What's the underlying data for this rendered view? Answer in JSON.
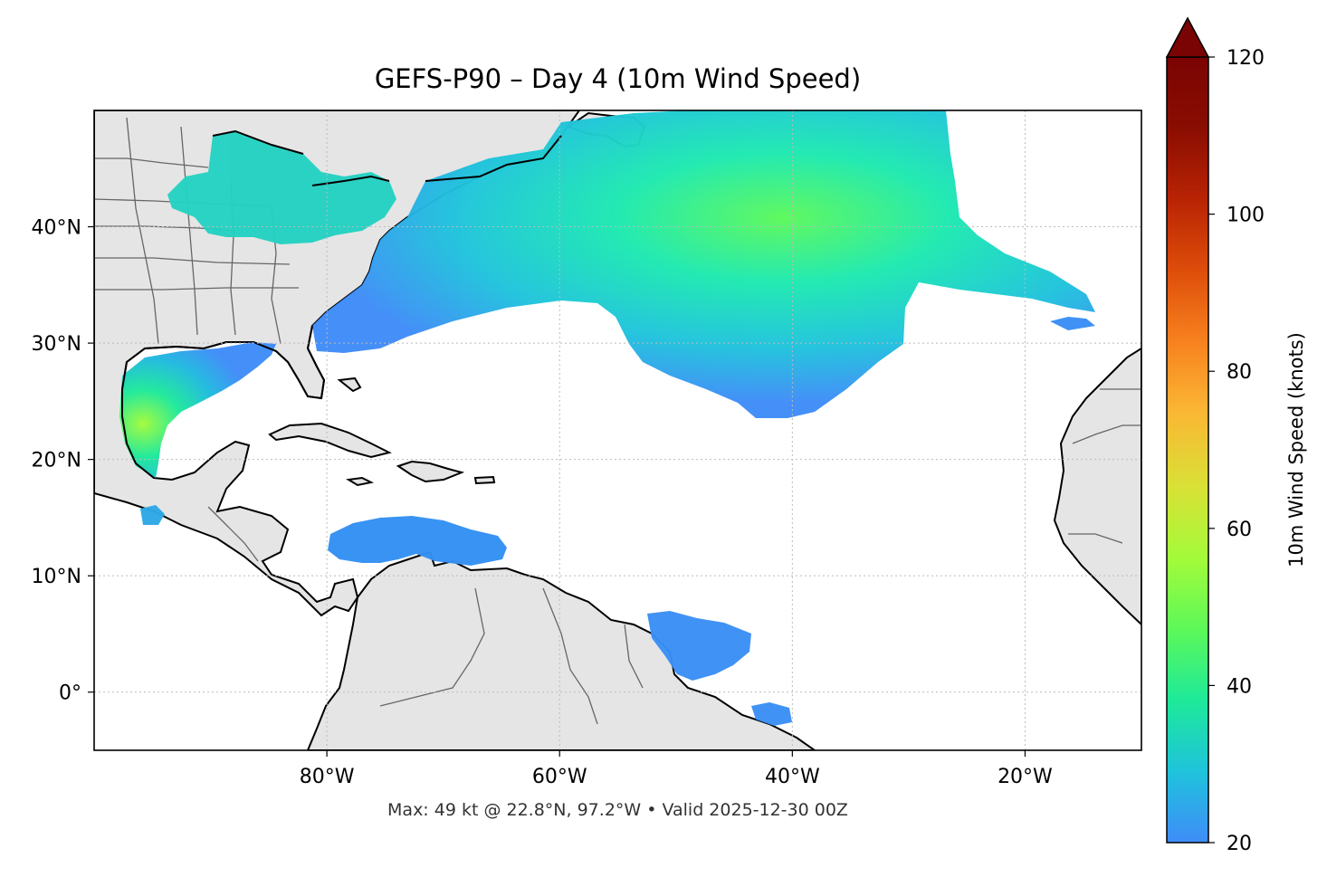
{
  "title": "GEFS-P90 – Day 4 (10m Wind Speed)",
  "caption": "Max: 49 kt @ 22.8°N, 97.2°W • Valid 2025-12-30 00Z",
  "map": {
    "lon_range": [
      -100,
      -10
    ],
    "lat_range": [
      -5,
      50
    ],
    "lon_ticks": [
      {
        "value": -80,
        "label": "80°W"
      },
      {
        "value": -60,
        "label": "60°W"
      },
      {
        "value": -40,
        "label": "40°W"
      },
      {
        "value": -20,
        "label": "20°W"
      }
    ],
    "lat_ticks": [
      {
        "value": 40,
        "label": "40°N"
      },
      {
        "value": 30,
        "label": "30°N"
      },
      {
        "value": 20,
        "label": "20°N"
      },
      {
        "value": 10,
        "label": "10°N"
      },
      {
        "value": 0,
        "label": "0°"
      }
    ],
    "land_color": "#e5e5e5",
    "coast_color": "#000000",
    "border_color": "#666666",
    "grid": "dotted"
  },
  "colorbar": {
    "label": "10m Wind Speed (knots)",
    "range": [
      20,
      120
    ],
    "extend": "max",
    "ticks": [
      {
        "value": 120,
        "label": "120"
      },
      {
        "value": 100,
        "label": "100"
      },
      {
        "value": 80,
        "label": "80"
      },
      {
        "value": 60,
        "label": "60"
      },
      {
        "value": 40,
        "label": "40"
      },
      {
        "value": 20,
        "label": "20"
      }
    ],
    "colors": [
      "#3f8cf8",
      "#1fc3dc",
      "#1de99a",
      "#5cf85a",
      "#a2fb3a",
      "#d8e236",
      "#fbb634",
      "#f7801e",
      "#dd4c0a",
      "#b82304",
      "#8a0d02",
      "#7a0403"
    ]
  },
  "wind_regions": [
    {
      "name": "North Atlantic storm",
      "speed_kt": 35
    },
    {
      "name": "Great Lakes",
      "speed_kt": 33
    },
    {
      "name": "Gulf of Mexico",
      "speed_kt": 32
    },
    {
      "name": "Western Gulf peak",
      "speed_kt": 45
    },
    {
      "name": "Caribbean Sea",
      "speed_kt": 25
    },
    {
      "name": "Tropical Atlantic",
      "speed_kt": 22
    }
  ]
}
